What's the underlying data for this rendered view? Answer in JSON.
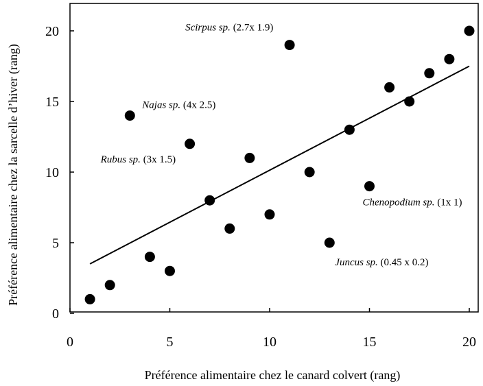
{
  "chart_data": {
    "type": "scatter",
    "title": "",
    "xlabel": "Préférence alimentaire chez le canard colvert (rang)",
    "ylabel": "Préférence alimentaire chez la sarcelle d’hiver (rang)",
    "xlim": [
      0,
      21
    ],
    "ylim": [
      0,
      21
    ],
    "xticks": [
      "0",
      "5",
      "10",
      "15",
      "20"
    ],
    "yticks": [
      "0",
      "5",
      "10",
      "15",
      "20"
    ],
    "points": [
      {
        "x": 1,
        "y": 1
      },
      {
        "x": 2,
        "y": 2
      },
      {
        "x": 3,
        "y": 14
      },
      {
        "x": 4,
        "y": 4
      },
      {
        "x": 5,
        "y": 3
      },
      {
        "x": 6,
        "y": 12
      },
      {
        "x": 7,
        "y": 8
      },
      {
        "x": 8,
        "y": 6
      },
      {
        "x": 9,
        "y": 11
      },
      {
        "x": 10,
        "y": 7
      },
      {
        "x": 11,
        "y": 19
      },
      {
        "x": 12,
        "y": 10
      },
      {
        "x": 13,
        "y": 5
      },
      {
        "x": 14,
        "y": 13
      },
      {
        "x": 15,
        "y": 9
      },
      {
        "x": 16,
        "y": 16
      },
      {
        "x": 17,
        "y": 15
      },
      {
        "x": 18,
        "y": 17
      },
      {
        "x": 19,
        "y": 18
      },
      {
        "x": 20,
        "y": 20
      }
    ],
    "trendline": {
      "x": [
        1,
        20
      ],
      "y": [
        3.5,
        17.5
      ]
    },
    "annotations": [
      {
        "species": "Scirpus sp.",
        "value": "(2.7x 1.9)",
        "x": 11,
        "y": 19
      },
      {
        "species": "Najas sp.",
        "value": "(4x 2.5)",
        "x": 3,
        "y": 14
      },
      {
        "species": "Rubus sp.",
        "value": "(3x 1.5)",
        "x": 6,
        "y": 12
      },
      {
        "species": "Chenopodium sp.",
        "value": "(1x 1)",
        "x": 15,
        "y": 9
      },
      {
        "species": "Juncus sp.",
        "value": "(0.45 x 0.2)",
        "x": 13,
        "y": 5
      }
    ],
    "grid": false
  }
}
